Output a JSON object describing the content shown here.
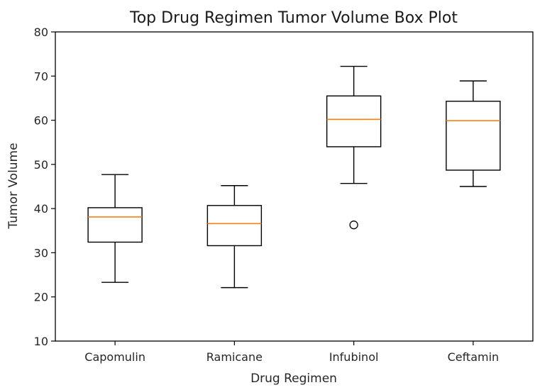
{
  "chart_data": {
    "type": "box",
    "title": "Top Drug Regimen Tumor Volume Box Plot",
    "xlabel": "Drug Regimen",
    "ylabel": "Tumor Volume",
    "ylim": [
      10,
      80
    ],
    "yticks": [
      10,
      20,
      30,
      40,
      50,
      60,
      70,
      80
    ],
    "grid": false,
    "categories": [
      "Capomulin",
      "Ramicane",
      "Infubinol",
      "Ceftamin"
    ],
    "boxes": [
      {
        "category": "Capomulin",
        "whisker_low": 23.3,
        "q1": 32.4,
        "median": 38.1,
        "q3": 40.2,
        "whisker_high": 47.7,
        "outliers": []
      },
      {
        "category": "Ramicane",
        "whisker_low": 22.1,
        "q1": 31.6,
        "median": 36.6,
        "q3": 40.7,
        "whisker_high": 45.2,
        "outliers": []
      },
      {
        "category": "Infubinol",
        "whisker_low": 45.7,
        "q1": 54.0,
        "median": 60.2,
        "q3": 65.5,
        "whisker_high": 72.2,
        "outliers": [
          36.3
        ]
      },
      {
        "category": "Ceftamin",
        "whisker_low": 45.0,
        "q1": 48.7,
        "median": 59.9,
        "q3": 64.3,
        "whisker_high": 68.9,
        "outliers": []
      }
    ],
    "colors": {
      "box": "#000000",
      "median": "#ff7f0e",
      "outlier": "#000000"
    }
  }
}
